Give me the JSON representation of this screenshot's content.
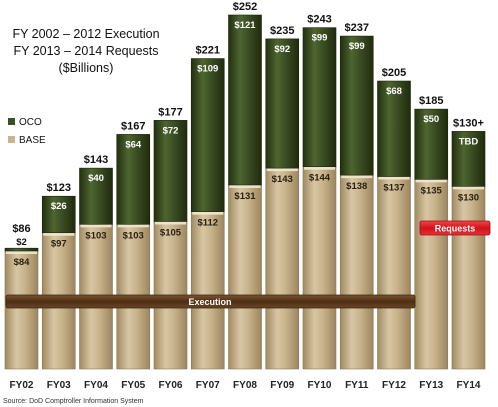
{
  "title_lines": [
    "FY 2002 – 2012 Execution",
    "FY 2013 – 2014 Requests",
    "($Billions)"
  ],
  "source": "Source: DoD Comptroller Information System",
  "legend": {
    "oco": "OCO",
    "base": "BASE"
  },
  "banners": {
    "execution": "Execution",
    "requests": "Requests"
  },
  "colors": {
    "oco": "#3d4f25",
    "base": "#c9b48f",
    "execution_banner": "#5a3a1c",
    "requests_banner": "#e31b23"
  },
  "chart_data": {
    "type": "bar",
    "stacked": true,
    "categories": [
      "FY02",
      "FY03",
      "FY04",
      "FY05",
      "FY06",
      "FY07",
      "FY08",
      "FY09",
      "FY10",
      "FY11",
      "FY12",
      "FY13",
      "FY14"
    ],
    "ylim": [
      0,
      252
    ],
    "series": [
      {
        "name": "BASE",
        "values": [
          84,
          97,
          103,
          103,
          105,
          112,
          131,
          143,
          144,
          138,
          137,
          135,
          130
        ],
        "labels": [
          "$84",
          "$97",
          "$103",
          "$103",
          "$105",
          "$112",
          "$131",
          "$143",
          "$144",
          "$138",
          "$137",
          "$135",
          "$130"
        ]
      },
      {
        "name": "OCO",
        "values": [
          2,
          26,
          40,
          64,
          72,
          109,
          121,
          92,
          99,
          99,
          68,
          50,
          0
        ],
        "labels": [
          "$2",
          "$26",
          "$40",
          "$64",
          "$72",
          "$109",
          "$121",
          "$92",
          "$99",
          "$99",
          "$68",
          "$50",
          "TBD"
        ]
      }
    ],
    "totals": [
      "$86",
      "$123",
      "$143",
      "$167",
      "$177",
      "$221",
      "$252",
      "$235",
      "$243",
      "$237",
      "$205",
      "$185",
      "$130+"
    ],
    "annotations": [
      {
        "text": "Execution",
        "from": "FY02",
        "to": "FY12"
      },
      {
        "text": "Requests",
        "from": "FY13",
        "to": "FY14"
      }
    ],
    "legend_position": "left",
    "grid": false
  }
}
